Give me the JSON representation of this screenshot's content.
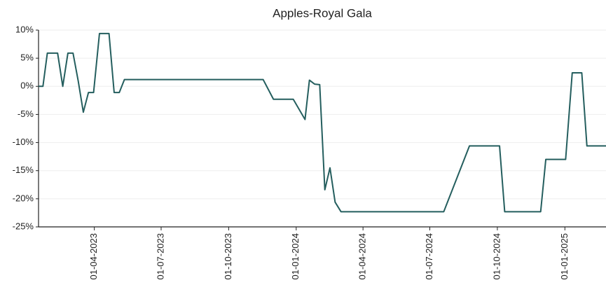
{
  "chart_data": {
    "type": "line",
    "title": "Apples-Royal Gala",
    "x": [
      "2023-01-15",
      "2023-01-21",
      "2023-01-27",
      "2023-02-10",
      "2023-02-17",
      "2023-02-24",
      "2023-03-03",
      "2023-03-10",
      "2023-03-17",
      "2023-03-24",
      "2023-03-31",
      "2023-04-08",
      "2023-04-21",
      "2023-04-28",
      "2023-05-05",
      "2023-05-12",
      "2023-11-17",
      "2023-12-01",
      "2023-12-28",
      "2024-01-13",
      "2024-01-19",
      "2024-01-26",
      "2024-02-02",
      "2024-02-09",
      "2024-02-16",
      "2024-02-23",
      "2024-03-02",
      "2024-07-20",
      "2024-08-24",
      "2024-10-04",
      "2024-10-11",
      "2024-11-29",
      "2024-12-06",
      "2025-01-02",
      "2025-01-11",
      "2025-01-24",
      "2025-01-31",
      "2025-02-26"
    ],
    "series": [
      {
        "color": "#245e5e",
        "values": [
          0,
          0,
          5.9,
          5.9,
          0,
          5.9,
          5.9,
          1,
          -4.6,
          -1.1,
          -1.1,
          9.4,
          9.4,
          -1.1,
          -1.1,
          1.2,
          1.2,
          -2.3,
          -2.3,
          -5.9,
          1.1,
          0.4,
          0.3,
          -18.4,
          -14.5,
          -20.6,
          -22.3,
          -22.3,
          -10.6,
          -10.6,
          -22.3,
          -22.3,
          -13,
          -13,
          2.4,
          2.4,
          -10.6,
          -10.6
        ]
      }
    ],
    "xlim": [
      "2023-01-15",
      "2025-02-26"
    ],
    "xticks": [
      {
        "value": "2023-04-01",
        "label": "01-04-2023"
      },
      {
        "value": "2023-07-01",
        "label": "01-07-2023"
      },
      {
        "value": "2023-10-01",
        "label": "01-10-2023"
      },
      {
        "value": "2024-01-01",
        "label": "01-01-2024"
      },
      {
        "value": "2024-04-01",
        "label": "01-04-2024"
      },
      {
        "value": "2024-07-01",
        "label": "01-07-2024"
      },
      {
        "value": "2024-10-01",
        "label": "01-10-2024"
      },
      {
        "value": "2025-01-01",
        "label": "01-01-2025"
      }
    ],
    "ylim": [
      -25,
      10
    ],
    "yticks": [
      {
        "value": -25,
        "label": "-25%"
      },
      {
        "value": -20,
        "label": "-20%"
      },
      {
        "value": -15,
        "label": "-15%"
      },
      {
        "value": -10,
        "label": "-10%"
      },
      {
        "value": -5,
        "label": "-5%"
      },
      {
        "value": 0,
        "label": "0%"
      },
      {
        "value": 5,
        "label": "5%"
      },
      {
        "value": 10,
        "label": "10%"
      }
    ],
    "grid": true
  }
}
